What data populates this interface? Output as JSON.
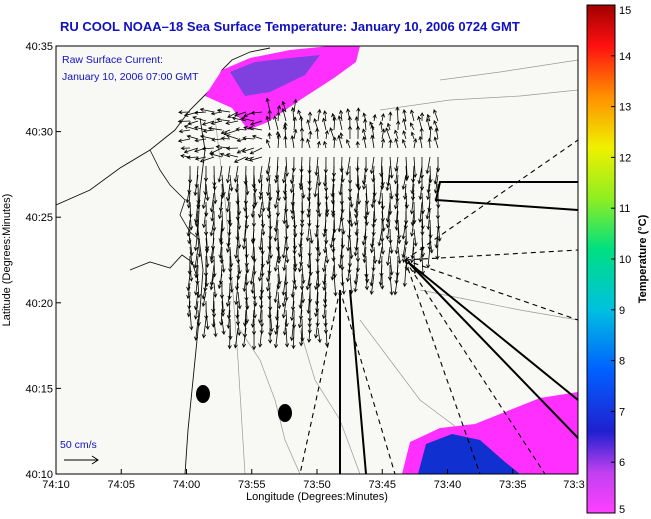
{
  "chart_data": {
    "type": "scatter",
    "title": "RU COOL  NOAA–18  Sea Surface Temperature:  January 10, 2006 0724 GMT",
    "annotation_lines": [
      "Raw Surface Current:",
      "January 10, 2006 07:00 GMT"
    ],
    "xlabel": "Longitude (Degrees:Minutes)",
    "ylabel": "Latitude (Degrees:Minutes)",
    "x_ticks": [
      "74:10",
      "74:05",
      "74:00",
      "73:55",
      "73:50",
      "73:45",
      "73:40",
      "73:35",
      "73:3"
    ],
    "y_ticks": [
      "40:35",
      "40:30",
      "40:25",
      "40:20",
      "40:15",
      "40:10"
    ],
    "scale_label": "50 cm/s",
    "colorbar": {
      "label": "Temperature (°C)",
      "ticks": [
        "15",
        "14",
        "13",
        "12",
        "11",
        "10",
        "9",
        "8",
        "7",
        "6",
        "5"
      ],
      "range": [
        5,
        15
      ]
    },
    "colors": {
      "title": "#1010c0",
      "sst_high": "#ff20ff",
      "sst_low": "#1030d0",
      "land": "#f8f8f4"
    }
  }
}
